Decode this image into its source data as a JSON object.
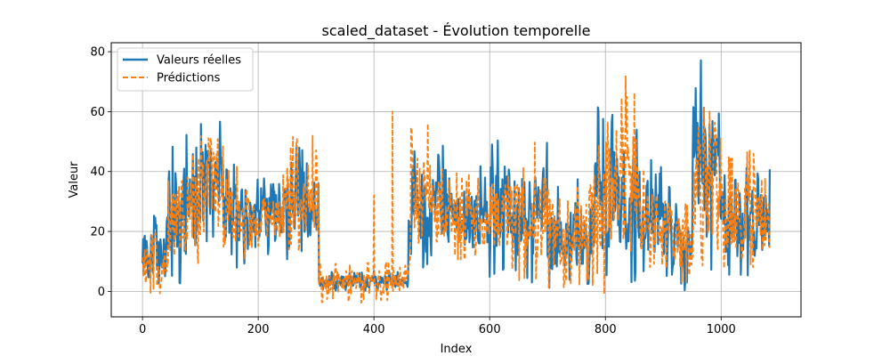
{
  "chart_data": {
    "type": "line",
    "title": "scaled_dataset - Évolution temporelle",
    "xlabel": "Index",
    "ylabel": "Valeur",
    "xlim": [
      -54,
      1138
    ],
    "ylim": [
      -8.5,
      83
    ],
    "xticks": [
      0,
      200,
      400,
      600,
      800,
      1000
    ],
    "yticks": [
      0,
      20,
      40,
      60,
      80
    ],
    "grid": true,
    "legend_position": "top-left",
    "n_points": 1085,
    "series": [
      {
        "name": "Valeurs réelles",
        "color": "#1f77b4",
        "style": "solid",
        "segments": [
          {
            "x_start": 0,
            "x_end": 45,
            "low": 0,
            "high": 26
          },
          {
            "x_start": 45,
            "x_end": 100,
            "low": 2,
            "high": 53
          },
          {
            "x_start": 100,
            "x_end": 140,
            "low": 15,
            "high": 61
          },
          {
            "x_start": 140,
            "x_end": 180,
            "low": 5,
            "high": 45
          },
          {
            "x_start": 180,
            "x_end": 240,
            "low": 12,
            "high": 38
          },
          {
            "x_start": 240,
            "x_end": 305,
            "low": 10,
            "high": 48
          },
          {
            "x_start": 305,
            "x_end": 460,
            "low": 0,
            "high": 7
          },
          {
            "x_start": 460,
            "x_end": 520,
            "low": 5,
            "high": 49
          },
          {
            "x_start": 520,
            "x_end": 600,
            "low": 8,
            "high": 42
          },
          {
            "x_start": 600,
            "x_end": 700,
            "low": 2,
            "high": 55
          },
          {
            "x_start": 700,
            "x_end": 780,
            "low": 0,
            "high": 38
          },
          {
            "x_start": 780,
            "x_end": 860,
            "low": 2,
            "high": 63
          },
          {
            "x_start": 860,
            "x_end": 915,
            "low": 5,
            "high": 44
          },
          {
            "x_start": 915,
            "x_end": 950,
            "low": 0,
            "high": 30
          },
          {
            "x_start": 950,
            "x_end": 1000,
            "low": 5,
            "high": 78
          },
          {
            "x_start": 1000,
            "x_end": 1085,
            "low": 5,
            "high": 42
          }
        ]
      },
      {
        "name": "Prédictions",
        "color": "#ff7f0e",
        "style": "dashed",
        "segments": [
          {
            "x_start": 0,
            "x_end": 45,
            "low": -1,
            "high": 22
          },
          {
            "x_start": 45,
            "x_end": 100,
            "low": 4,
            "high": 48
          },
          {
            "x_start": 100,
            "x_end": 140,
            "low": 18,
            "high": 63
          },
          {
            "x_start": 140,
            "x_end": 180,
            "low": 8,
            "high": 42
          },
          {
            "x_start": 180,
            "x_end": 240,
            "low": 14,
            "high": 36
          },
          {
            "x_start": 240,
            "x_end": 305,
            "low": 12,
            "high": 52
          },
          {
            "x_start": 305,
            "x_end": 460,
            "low": -4,
            "high": 10
          },
          {
            "x_start": 460,
            "x_end": 520,
            "low": 6,
            "high": 56
          },
          {
            "x_start": 520,
            "x_end": 600,
            "low": 9,
            "high": 40
          },
          {
            "x_start": 600,
            "x_end": 700,
            "low": 3,
            "high": 52
          },
          {
            "x_start": 700,
            "x_end": 780,
            "low": 0,
            "high": 45
          },
          {
            "x_start": 780,
            "x_end": 860,
            "low": -1,
            "high": 72
          },
          {
            "x_start": 860,
            "x_end": 915,
            "low": 6,
            "high": 42
          },
          {
            "x_start": 915,
            "x_end": 950,
            "low": 0,
            "high": 32
          },
          {
            "x_start": 950,
            "x_end": 1000,
            "low": 6,
            "high": 68
          },
          {
            "x_start": 1000,
            "x_end": 1085,
            "low": 6,
            "high": 48
          }
        ],
        "spikes": [
          {
            "x": 400,
            "y": 32
          },
          {
            "x": 432,
            "y": 60
          },
          {
            "x": 493,
            "y": 56
          },
          {
            "x": 835,
            "y": 72
          }
        ]
      }
    ]
  }
}
